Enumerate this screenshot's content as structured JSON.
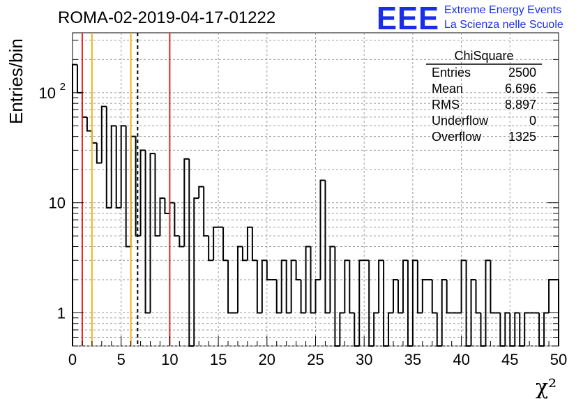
{
  "header": {
    "title": "ROMA-02-2019-04-17-01222",
    "brand_logo": "EEE",
    "brand_line1": "Extreme Energy Events",
    "brand_line2": "La Scienza nelle Scuole",
    "brand_color": "#1a2ee8"
  },
  "stats": {
    "name": "ChiSquare",
    "rows": [
      {
        "label": "Entries",
        "value": "2500"
      },
      {
        "label": "Mean",
        "value": "6.696"
      },
      {
        "label": "RMS",
        "value": "8.897"
      },
      {
        "label": "Underflow",
        "value": "0"
      },
      {
        "label": "Overflow",
        "value": "1325"
      }
    ]
  },
  "chart_data": {
    "type": "bar",
    "histogram": true,
    "xlabel": "χ²",
    "ylabel": "Entries/bin",
    "xlim": [
      0,
      50
    ],
    "ylim": [
      0.5,
      350
    ],
    "log_y": true,
    "grid": true,
    "bin_width": 0.5,
    "x_ticks": [
      "0",
      "5",
      "10",
      "15",
      "20",
      "25",
      "30",
      "35",
      "40",
      "45",
      "50"
    ],
    "y_ticks": [
      {
        "value": 1,
        "label": "1"
      },
      {
        "value": 10,
        "label": "10"
      },
      {
        "value": 100,
        "label": "10",
        "exp": "2"
      }
    ],
    "values": [
      180,
      100,
      60,
      45,
      35,
      23,
      75,
      9,
      50,
      9,
      50,
      4,
      40,
      5,
      30,
      1,
      28,
      5,
      11,
      8,
      10,
      5,
      4,
      25,
      0,
      11,
      14,
      5,
      3,
      6,
      6,
      3,
      1,
      1,
      4,
      3,
      6,
      3,
      1,
      3,
      2,
      2,
      1,
      3,
      1,
      3,
      2,
      1,
      4,
      1,
      2,
      16,
      1,
      4,
      0,
      1,
      3,
      1,
      0,
      3,
      3,
      0,
      1,
      3,
      0,
      1,
      2,
      1,
      3,
      0,
      3,
      1,
      2,
      2,
      1,
      0,
      2,
      1,
      1,
      1,
      3,
      0,
      2,
      1,
      0,
      3,
      1,
      1,
      0,
      1,
      0,
      1,
      0,
      1,
      1,
      1,
      0,
      1,
      2,
      2
    ],
    "vlines": [
      {
        "x": 1,
        "color": "#e8211e",
        "style": "solid"
      },
      {
        "x": 2,
        "color": "#f2b21e",
        "style": "solid"
      },
      {
        "x": 6,
        "color": "#f2b21e",
        "style": "solid"
      },
      {
        "x": 6.696,
        "color": "#000000",
        "style": "dashed"
      },
      {
        "x": 10,
        "color": "#e8211e",
        "style": "solid"
      }
    ]
  }
}
